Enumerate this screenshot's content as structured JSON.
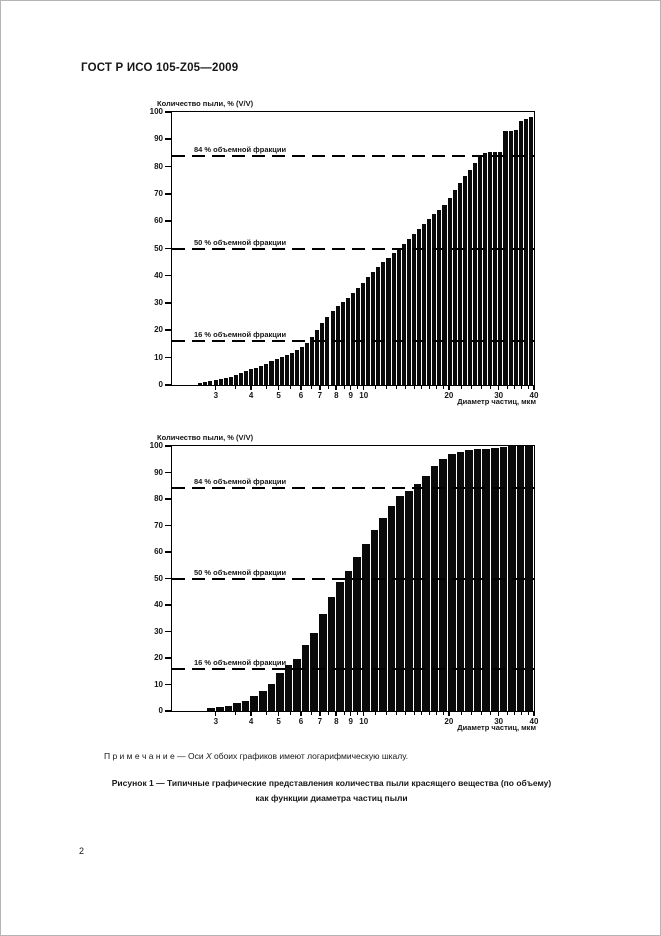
{
  "header": {
    "title": "ГОСТ Р ИСО 105-Z05—2009"
  },
  "page_number": "2",
  "note": {
    "prefix": "П р и м е ч а н и е — Оси ",
    "italic": "X",
    "suffix": " обоих графиков имеют логарифмическую шкалу."
  },
  "caption": {
    "line1": "Рисунок 1 — Типичные графические представления количества пыли красящего вещества (по объему)",
    "line2": "как функции диаметра частиц пыли"
  },
  "chart_data": [
    {
      "type": "bar",
      "title": "",
      "y_axis_title": "Количество пыли, % (V/V)",
      "x_axis_title": "Диаметр частиц, мкм",
      "x_scale": "log",
      "x_range": [
        2.1,
        40
      ],
      "ylim": [
        0,
        100
      ],
      "y_ticks": [
        0,
        10,
        20,
        30,
        40,
        50,
        60,
        70,
        80,
        90,
        100
      ],
      "x_major_ticks": [
        3,
        4,
        5,
        6,
        7,
        8,
        9,
        10,
        20,
        30,
        40
      ],
      "x_minor_ticks": [
        3.5,
        4.5,
        5.5,
        6.5,
        7.5,
        8.5,
        9.5,
        11,
        12,
        13,
        14,
        15,
        16,
        17,
        18,
        19,
        22,
        24,
        26,
        28,
        32,
        34,
        36,
        38
      ],
      "guides": [
        {
          "value": 84,
          "label": "84 % объемной фракции"
        },
        {
          "value": 50,
          "label": "50 % объемной фракции"
        },
        {
          "value": 16,
          "label": "16 % объемной фракции"
        }
      ],
      "percentile_crossings_um": {
        "p16": 6.6,
        "p50": 13.6,
        "p84": 26.5
      },
      "bar_start": 2.6,
      "bar_count": 66,
      "cumulative_samples": [
        [
          2.6,
          0.5
        ],
        [
          3,
          1.5
        ],
        [
          3.5,
          3
        ],
        [
          4,
          5.5
        ],
        [
          4.5,
          7
        ],
        [
          5,
          9.5
        ],
        [
          5.5,
          11
        ],
        [
          6,
          13
        ],
        [
          6.6,
          16
        ],
        [
          7,
          20
        ],
        [
          7.5,
          24
        ],
        [
          8,
          27.5
        ],
        [
          8.5,
          30
        ],
        [
          9,
          32
        ],
        [
          10,
          36.5
        ],
        [
          11,
          41
        ],
        [
          12,
          45
        ],
        [
          13,
          48
        ],
        [
          13.6,
          50
        ],
        [
          15,
          54
        ],
        [
          16,
          57
        ],
        [
          18,
          62
        ],
        [
          20,
          66.5
        ],
        [
          22,
          73
        ],
        [
          24,
          78
        ],
        [
          26,
          83
        ],
        [
          27,
          85
        ],
        [
          32,
          85.5
        ],
        [
          32.5,
          93
        ],
        [
          36,
          93.5
        ],
        [
          36.5,
          96.5
        ],
        [
          38,
          97
        ],
        [
          38.5,
          97.5
        ],
        [
          40,
          98
        ]
      ]
    },
    {
      "type": "bar",
      "title": "",
      "y_axis_title": "Количество пыли, % (V/V)",
      "x_axis_title": "Диаметр частиц, мкм",
      "x_scale": "log",
      "x_range": [
        2.1,
        40
      ],
      "ylim": [
        0,
        100
      ],
      "y_ticks": [
        0,
        10,
        20,
        30,
        40,
        50,
        60,
        70,
        80,
        90,
        100
      ],
      "x_major_ticks": [
        3,
        4,
        5,
        6,
        7,
        8,
        9,
        10,
        20,
        30,
        40
      ],
      "x_minor_ticks": [
        3.5,
        4.5,
        5.5,
        6.5,
        7.5,
        8.5,
        9.5,
        11,
        12,
        13,
        14,
        15,
        16,
        17,
        18,
        19,
        22,
        24,
        26,
        28,
        32,
        34,
        36,
        38
      ],
      "guides": [
        {
          "value": 84,
          "label": "84 % объемной фракции"
        },
        {
          "value": 50,
          "label": "50 % объемной фракции"
        },
        {
          "value": 16,
          "label": "16 % объемной фракции"
        }
      ],
      "percentile_crossings_um": {
        "p16": 5.4,
        "p50": 8.8,
        "p84": 15.5
      },
      "bar_start": 2.8,
      "bar_count": 38,
      "cumulative_samples": [
        [
          2.8,
          0.5
        ],
        [
          3,
          1
        ],
        [
          3.5,
          2
        ],
        [
          4,
          4
        ],
        [
          4.5,
          7
        ],
        [
          5,
          11
        ],
        [
          5.4,
          16
        ],
        [
          6,
          19
        ],
        [
          6.5,
          25
        ],
        [
          7,
          30
        ],
        [
          7.5,
          37
        ],
        [
          8,
          43
        ],
        [
          8.5,
          48
        ],
        [
          8.8,
          50
        ],
        [
          9.5,
          55
        ],
        [
          10,
          59
        ],
        [
          11,
          66
        ],
        [
          12,
          72
        ],
        [
          13,
          77
        ],
        [
          14,
          81
        ],
        [
          15,
          83
        ],
        [
          15.5,
          84
        ],
        [
          16,
          85.5
        ],
        [
          17,
          88
        ],
        [
          18,
          91
        ],
        [
          19,
          93.5
        ],
        [
          20,
          95.5
        ],
        [
          22,
          97.5
        ],
        [
          24,
          98.2
        ],
        [
          26,
          98.7
        ],
        [
          28,
          99
        ],
        [
          30,
          99.3
        ],
        [
          32,
          99.6
        ],
        [
          34,
          100
        ],
        [
          40,
          100
        ]
      ]
    }
  ]
}
